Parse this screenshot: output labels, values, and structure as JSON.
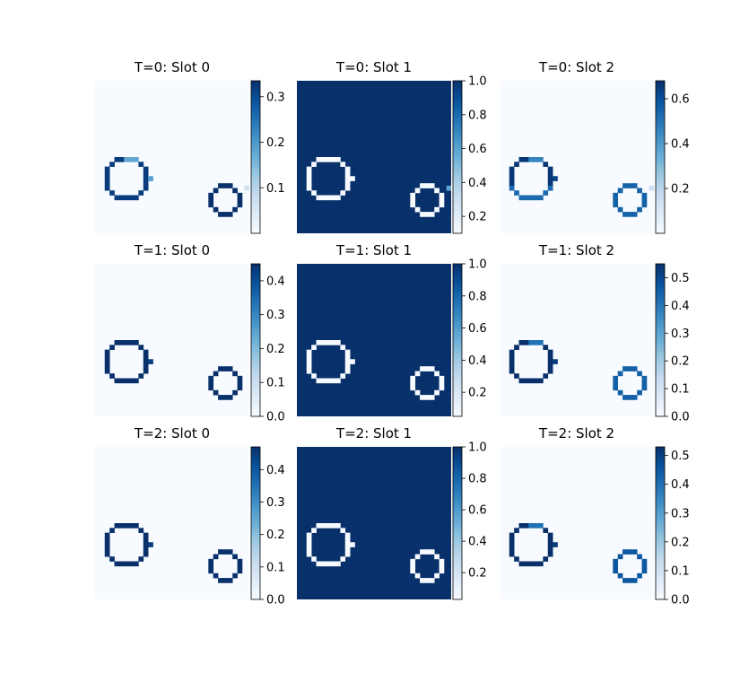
{
  "chart_data": [
    {
      "type": "heatmap",
      "title": "T=0: Slot 0",
      "variant": "t0_s0",
      "cmap": "Blues",
      "vmin": 0.0,
      "vmax": 0.335,
      "ticks": [
        "0.1",
        "0.2",
        "0.3"
      ],
      "tick_values": [
        0.1,
        0.2,
        0.3
      ],
      "background_value": 0.0,
      "big_circle_value": 0.32,
      "small_circle_value": 0.335
    },
    {
      "type": "heatmap",
      "title": "T=0: Slot 1",
      "variant": "t0_s1",
      "cmap": "Blues",
      "vmin": 0.1,
      "vmax": 1.0,
      "ticks": [
        "0.2",
        "0.4",
        "0.6",
        "0.8",
        "1.0"
      ],
      "tick_values": [
        0.2,
        0.4,
        0.6,
        0.8,
        1.0
      ],
      "background_value": 1.0,
      "big_circle_value": 0.1,
      "small_circle_value": 0.1
    },
    {
      "type": "heatmap",
      "title": "T=0: Slot 2",
      "variant": "t0_s2",
      "cmap": "Blues",
      "vmin": 0.0,
      "vmax": 0.68,
      "ticks": [
        "0.2",
        "0.4",
        "0.6"
      ],
      "tick_values": [
        0.2,
        0.4,
        0.6
      ],
      "background_value": 0.0,
      "big_circle_value": 0.66,
      "small_circle_value": 0.55
    },
    {
      "type": "heatmap",
      "title": "T=1: Slot 0",
      "variant": "tn_s0",
      "cmap": "Blues",
      "vmin": 0.0,
      "vmax": 0.45,
      "ticks": [
        "0.0",
        "0.1",
        "0.2",
        "0.3",
        "0.4"
      ],
      "tick_values": [
        0.0,
        0.1,
        0.2,
        0.3,
        0.4
      ],
      "background_value": 0.0,
      "big_circle_value": 0.45,
      "small_circle_value": 0.45
    },
    {
      "type": "heatmap",
      "title": "T=1: Slot 1",
      "variant": "tn_s1",
      "cmap": "Blues",
      "vmin": 0.05,
      "vmax": 1.0,
      "ticks": [
        "0.2",
        "0.4",
        "0.6",
        "0.8",
        "1.0"
      ],
      "tick_values": [
        0.2,
        0.4,
        0.6,
        0.8,
        1.0
      ],
      "background_value": 1.0,
      "big_circle_value": 0.05,
      "small_circle_value": 0.05
    },
    {
      "type": "heatmap",
      "title": "T=1: Slot 2",
      "variant": "tn_s2",
      "cmap": "Blues",
      "vmin": 0.0,
      "vmax": 0.55,
      "ticks": [
        "0.0",
        "0.1",
        "0.2",
        "0.3",
        "0.4",
        "0.5"
      ],
      "tick_values": [
        0.0,
        0.1,
        0.2,
        0.3,
        0.4,
        0.5
      ],
      "background_value": 0.0,
      "big_circle_value": 0.55,
      "small_circle_value": 0.45
    },
    {
      "type": "heatmap",
      "title": "T=2: Slot 0",
      "variant": "tn_s0",
      "cmap": "Blues",
      "vmin": 0.0,
      "vmax": 0.47,
      "ticks": [
        "0.0",
        "0.1",
        "0.2",
        "0.3",
        "0.4"
      ],
      "tick_values": [
        0.0,
        0.1,
        0.2,
        0.3,
        0.4
      ],
      "background_value": 0.0,
      "big_circle_value": 0.47,
      "small_circle_value": 0.47
    },
    {
      "type": "heatmap",
      "title": "T=2: Slot 1",
      "variant": "tn_s1",
      "cmap": "Blues",
      "vmin": 0.03,
      "vmax": 1.0,
      "ticks": [
        "0.2",
        "0.4",
        "0.6",
        "0.8",
        "1.0"
      ],
      "tick_values": [
        0.2,
        0.4,
        0.6,
        0.8,
        1.0
      ],
      "background_value": 1.0,
      "big_circle_value": 0.03,
      "small_circle_value": 0.03
    },
    {
      "type": "heatmap",
      "title": "T=2: Slot 2",
      "variant": "tn_s2",
      "cmap": "Blues",
      "vmin": 0.0,
      "vmax": 0.53,
      "ticks": [
        "0.0",
        "0.1",
        "0.2",
        "0.3",
        "0.4",
        "0.5"
      ],
      "tick_values": [
        0.0,
        0.1,
        0.2,
        0.3,
        0.4,
        0.5
      ],
      "background_value": 0.0,
      "big_circle_value": 0.53,
      "small_circle_value": 0.45
    }
  ]
}
